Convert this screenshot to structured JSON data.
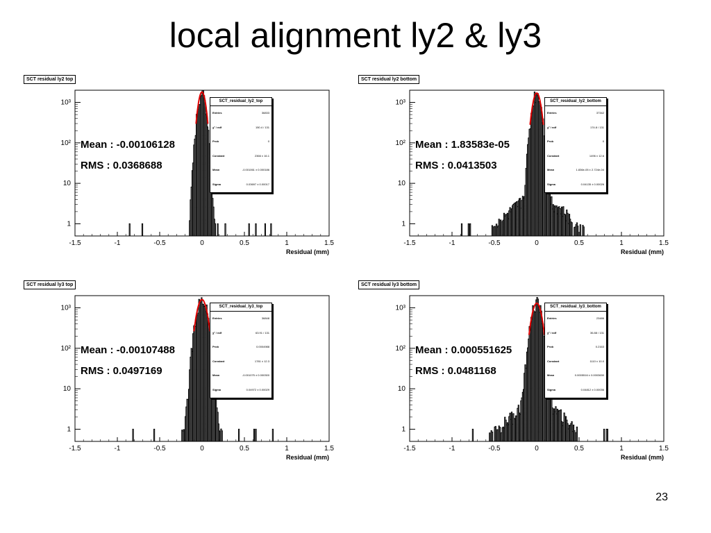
{
  "title": "local alignment ly2 & ly3",
  "page_number": "23",
  "chart_data": [
    {
      "type": "histogram",
      "panel_tag": "SCT residual ly2 top",
      "xlabel": "Residual (mm)",
      "xlim": [
        -1.5,
        1.5
      ],
      "ylim": [
        0.5,
        2000
      ],
      "log_y": true,
      "x_ticks": [
        "-1.5",
        "-1",
        "-0.5",
        "0",
        "0.5",
        "1",
        "1.5"
      ],
      "y_ticks": [
        "1",
        "10",
        "10²",
        "10³"
      ],
      "mean_label": "Mean : -0.00106128",
      "rms_label": "RMS : 0.0368688",
      "mean": -0.00106128,
      "rms": 0.0368688,
      "peak": 1800,
      "spread": "narrow",
      "stats": {
        "title": "SCT_residual_ly2_top",
        "rows": [
          {
            "label": "Entries",
            "value": "36833"
          },
          {
            "label": "χ² / ndf",
            "value": "150.4 / 131"
          },
          {
            "label": "Prob",
            "value": "0"
          },
          {
            "label": "Constant",
            "value": "2366 ± 16.1"
          },
          {
            "label": "Mean",
            "value": "-0.001061 ± 0.000186"
          },
          {
            "label": "Sigma",
            "value": "0.03697 ± 0.00017"
          }
        ]
      }
    },
    {
      "type": "histogram",
      "panel_tag": "SCT residual ly2 bottom",
      "xlabel": "Residual (mm)",
      "xlim": [
        -1.5,
        1.5
      ],
      "ylim": [
        0.5,
        2000
      ],
      "log_y": true,
      "x_ticks": [
        "-1.5",
        "-1",
        "-0.5",
        "0",
        "0.5",
        "1",
        "1.5"
      ],
      "y_ticks": [
        "1",
        "10",
        "10²",
        "10³"
      ],
      "mean_label": "Mean : 1.83583e-05",
      "rms_label": "RMS : 0.0413503",
      "mean": 1.83583e-05,
      "rms": 0.0413503,
      "peak": 1700,
      "spread": "wide",
      "stats": {
        "title": "SCT_residual_ly2_bottom",
        "rows": [
          {
            "label": "Entries",
            "value": "37342"
          },
          {
            "label": "χ² / ndf",
            "value": "174.8 / 131"
          },
          {
            "label": "Prob",
            "value": "0"
          },
          {
            "label": "Constant",
            "value": "1496 ± 12.6"
          },
          {
            "label": "Mean",
            "value": "1.836e-05 ± 2.724e-04"
          },
          {
            "label": "Sigma",
            "value": "0.04135 ± 0.00026"
          }
        ]
      }
    },
    {
      "type": "histogram",
      "panel_tag": "SCT residual ly3 top",
      "xlabel": "Residual (mm)",
      "xlim": [
        -1.5,
        1.5
      ],
      "ylim": [
        0.5,
        2000
      ],
      "log_y": true,
      "x_ticks": [
        "-1.5",
        "-1",
        "-0.5",
        "0",
        "0.5",
        "1",
        "1.5"
      ],
      "y_ticks": [
        "1",
        "10",
        "10²",
        "10³"
      ],
      "mean_label": "Mean : -0.00107488",
      "rms_label": "RMS : 0.0497169",
      "mean": -0.00107488,
      "rms": 0.0497169,
      "peak": 1600,
      "spread": "medium",
      "stats": {
        "title": "SCT_residual_ly3_top",
        "rows": [
          {
            "label": "Entries",
            "value": "36848"
          },
          {
            "label": "χ² / ndf",
            "value": "63.91 / 131"
          },
          {
            "label": "Prob",
            "value": "0.0004988"
          },
          {
            "label": "Constant",
            "value": "1781 ± 12.3"
          },
          {
            "label": "Mean",
            "value": "-0.001075 ± 0.000300"
          },
          {
            "label": "Sigma",
            "value": "0.04972 ± 0.00029"
          }
        ]
      }
    },
    {
      "type": "histogram",
      "panel_tag": "SCT residual ly3 bottom",
      "xlabel": "Residual (mm)",
      "xlim": [
        -1.5,
        1.5
      ],
      "ylim": [
        0.5,
        2000
      ],
      "log_y": true,
      "x_ticks": [
        "-1.5",
        "-1",
        "-0.5",
        "0",
        "0.5",
        "1",
        "1.5"
      ],
      "y_ticks": [
        "1",
        "10",
        "10²",
        "10³"
      ],
      "mean_label": "Mean : 0.000551625",
      "rms_label": "RMS : 0.0481168",
      "mean": 0.000551625,
      "rms": 0.0481168,
      "peak": 1300,
      "spread": "wide",
      "stats": {
        "title": "SCT_residual_ly3_bottom",
        "rows": [
          {
            "label": "Entries",
            "value": "23486"
          },
          {
            "label": "χ² / ndf",
            "value": "36.88 / 131"
          },
          {
            "label": "Prob",
            "value": "0.2163"
          },
          {
            "label": "Constant",
            "value": "1110 ± 10.0"
          },
          {
            "label": "Mean",
            "value": "0.0005516 ± 0.0003630"
          },
          {
            "label": "Sigma",
            "value": "0.04812 ± 0.00036"
          }
        ]
      }
    }
  ],
  "colors": {
    "fit": "#e00000",
    "histogram": "#000000"
  }
}
